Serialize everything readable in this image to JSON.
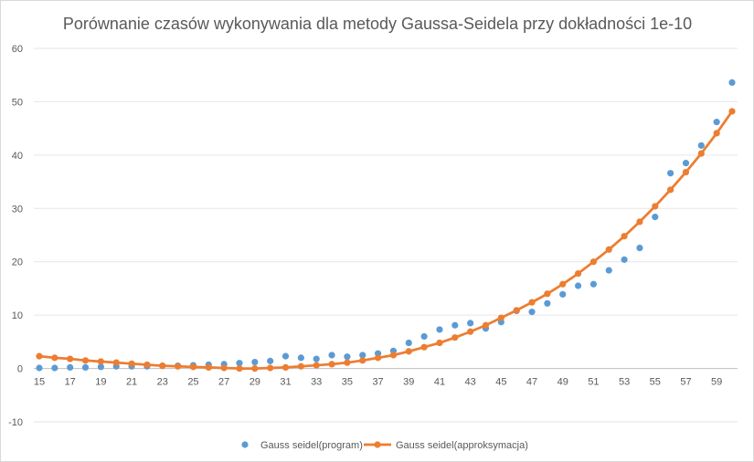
{
  "chart_data": {
    "type": "scatter",
    "title": "Porównanie czasów wykonywania dla metody Gaussa-Seidela przy dokładności 1e-10",
    "xlabel": "",
    "ylabel": "",
    "ylim": [
      -10,
      60
    ],
    "xlim": [
      15,
      60
    ],
    "y_ticks": [
      "60",
      "50",
      "40",
      "30",
      "20",
      "10",
      "0",
      "-10"
    ],
    "x_ticks": [
      "15",
      "17",
      "19",
      "21",
      "23",
      "25",
      "27",
      "29",
      "31",
      "33",
      "35",
      "37",
      "39",
      "41",
      "43",
      "45",
      "47",
      "49",
      "51",
      "53",
      "55",
      "57",
      "59"
    ],
    "grid": "horizontal",
    "legend_position": "bottom",
    "x": [
      15,
      16,
      17,
      18,
      19,
      20,
      21,
      22,
      23,
      24,
      25,
      26,
      27,
      28,
      29,
      30,
      31,
      32,
      33,
      34,
      35,
      36,
      37,
      38,
      39,
      40,
      41,
      42,
      43,
      44,
      45,
      46,
      47,
      48,
      49,
      50,
      51,
      52,
      53,
      54,
      55,
      56,
      57,
      58,
      59,
      60
    ],
    "series": [
      {
        "name": "Gauss seidel(program)",
        "style": "markers",
        "color": "#5b9bd5",
        "values": [
          0.1,
          0.1,
          0.2,
          0.2,
          0.3,
          0.4,
          0.4,
          0.4,
          0.5,
          0.5,
          0.6,
          0.7,
          0.8,
          1.0,
          1.2,
          1.4,
          2.3,
          2.0,
          1.8,
          2.5,
          2.2,
          2.5,
          2.8,
          3.3,
          4.8,
          6.0,
          7.3,
          8.1,
          8.5,
          7.5,
          8.7,
          10.8,
          10.6,
          12.2,
          13.9,
          15.5,
          15.8,
          18.4,
          20.4,
          22.6,
          28.4,
          36.6,
          38.5,
          41.8,
          46.2,
          53.6
        ]
      },
      {
        "name": "Gauss seidel(approksymacja)",
        "style": "line-markers",
        "color": "#ed7d31",
        "values": [
          2.3,
          2.0,
          1.8,
          1.5,
          1.3,
          1.1,
          0.9,
          0.7,
          0.5,
          0.4,
          0.3,
          0.2,
          0.1,
          0.0,
          0.0,
          0.1,
          0.2,
          0.4,
          0.6,
          0.8,
          1.1,
          1.5,
          2.0,
          2.5,
          3.2,
          4.0,
          4.8,
          5.8,
          6.9,
          8.1,
          9.5,
          10.9,
          12.4,
          14.0,
          15.8,
          17.8,
          20.0,
          22.3,
          24.8,
          27.5,
          30.4,
          33.5,
          36.8,
          40.3,
          44.1,
          48.2
        ]
      }
    ]
  }
}
